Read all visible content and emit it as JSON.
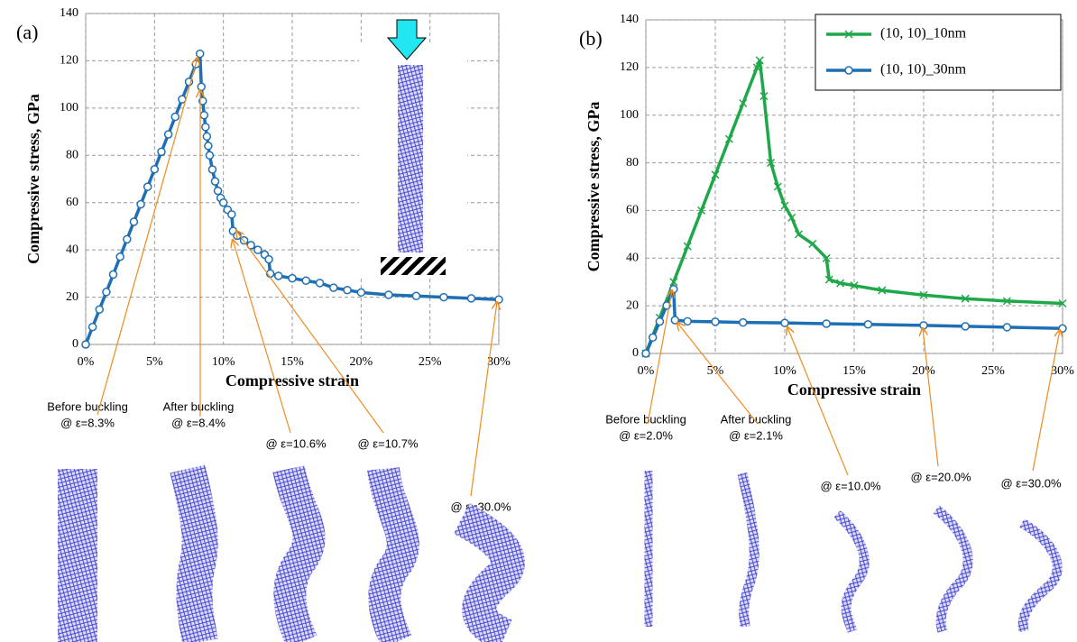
{
  "chart_data": [
    {
      "type": "line",
      "panel_label": "(a)",
      "x_label": "Compressive strain",
      "y_label": "Compressive stress, GPa",
      "xlim": [
        0,
        30
      ],
      "ylim": [
        0,
        140
      ],
      "xticks": [
        {
          "value": 0,
          "label": "0%"
        },
        {
          "value": 5,
          "label": "5%"
        },
        {
          "value": 10,
          "label": "10%"
        },
        {
          "value": 15,
          "label": "15%"
        },
        {
          "value": 20,
          "label": "20%"
        },
        {
          "value": 25,
          "label": "25%"
        },
        {
          "value": 30,
          "label": "30%"
        }
      ],
      "yticks": [
        0,
        20,
        40,
        60,
        80,
        100,
        120,
        140
      ],
      "grid": true,
      "series": [
        {
          "color": "#1f6fb5",
          "marker": "circle",
          "x": [
            0,
            0.5,
            1,
            1.5,
            2,
            2.5,
            3,
            3.5,
            4,
            4.5,
            5,
            5.5,
            6,
            6.5,
            7,
            7.5,
            8,
            8.3,
            8.4,
            8.5,
            8.6,
            8.7,
            8.8,
            8.9,
            9,
            9.2,
            9.4,
            9.6,
            9.8,
            10,
            10.3,
            10.6,
            10.7,
            11,
            11.5,
            12,
            12.5,
            13,
            13.3,
            13.4,
            14,
            15,
            16,
            17,
            18,
            19,
            20,
            22,
            24,
            26,
            28,
            30
          ],
          "values": [
            0,
            7.4,
            14.8,
            22.2,
            29.6,
            37.1,
            44.5,
            51.9,
            59.3,
            66.7,
            74.1,
            81.5,
            88.9,
            96.3,
            103.7,
            111.1,
            118.6,
            123,
            109,
            103,
            97,
            92,
            88,
            84,
            80,
            74,
            69,
            65,
            62,
            60,
            57,
            55,
            48,
            46,
            44,
            42,
            40,
            38,
            36,
            30,
            29,
            28,
            27,
            26,
            24,
            23,
            22,
            21,
            20.5,
            20,
            19.5,
            19
          ]
        }
      ],
      "annotations": [
        {
          "lines": [
            "Before buckling",
            "@ ε=8.3%"
          ]
        },
        {
          "lines": [
            "After buckling",
            "@ ε=8.4%"
          ]
        },
        {
          "lines": [
            "@ ε=10.6%"
          ]
        },
        {
          "lines": [
            "@ ε=10.7%"
          ]
        },
        {
          "lines": [
            "@ ε=30.0%"
          ]
        }
      ]
    },
    {
      "type": "line",
      "panel_label": "(b)",
      "x_label": "Compressive strain",
      "y_label": "Compressive stress, GPa",
      "xlim": [
        0,
        30
      ],
      "ylim": [
        0,
        140
      ],
      "xticks": [
        {
          "value": 0,
          "label": "0%"
        },
        {
          "value": 5,
          "label": "5%"
        },
        {
          "value": 10,
          "label": "10%"
        },
        {
          "value": 15,
          "label": "15%"
        },
        {
          "value": 20,
          "label": "20%"
        },
        {
          "value": 25,
          "label": "25%"
        },
        {
          "value": 30,
          "label": "30%"
        }
      ],
      "yticks": [
        0,
        20,
        40,
        60,
        80,
        100,
        120,
        140
      ],
      "grid": true,
      "legend": "upper right",
      "series": [
        {
          "name": "(10, 10)_10nm",
          "color": "#1fa84a",
          "marker": "x",
          "x": [
            0,
            1,
            2,
            3,
            4,
            5,
            6,
            7,
            8,
            8.2,
            8.5,
            9,
            9.5,
            10,
            10.5,
            11,
            12,
            13,
            13.2,
            14,
            15,
            17,
            20,
            23,
            26,
            30
          ],
          "values": [
            0,
            15,
            30,
            45,
            60,
            75,
            90,
            105,
            120,
            123,
            108,
            80,
            70,
            62,
            57,
            50,
            46,
            40,
            31,
            29.5,
            28.5,
            26.5,
            24.5,
            23,
            22,
            21
          ]
        },
        {
          "name": "(10, 10)_30nm",
          "color": "#1f6fb5",
          "marker": "circle",
          "x": [
            0,
            0.5,
            1,
            1.5,
            2,
            2.1,
            3,
            5,
            7,
            10,
            13,
            16,
            20,
            23,
            26,
            30
          ],
          "values": [
            0,
            6.7,
            13.4,
            20.1,
            27,
            14,
            13.5,
            13.3,
            13,
            12.8,
            12.5,
            12.2,
            11.8,
            11.4,
            11,
            10.5
          ]
        }
      ],
      "annotations": [
        {
          "lines": [
            "Before buckling",
            "@ ε=2.0%"
          ]
        },
        {
          "lines": [
            "After buckling",
            "@ ε=2.1%"
          ]
        },
        {
          "lines": [
            "@ ε=10.0%"
          ]
        },
        {
          "lines": [
            "@ ε=20.0%"
          ]
        },
        {
          "lines": [
            "@ ε=30.0%"
          ]
        }
      ]
    }
  ]
}
